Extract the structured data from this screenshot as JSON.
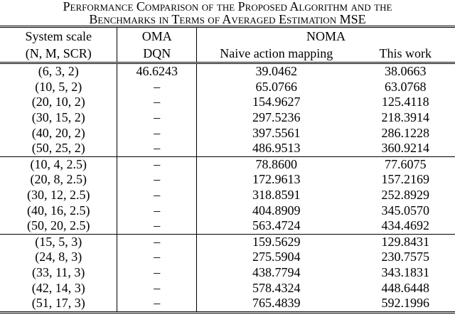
{
  "caption": {
    "lines": [
      "Performance Comparison of the Proposed Algorithm and the",
      "Benchmarks in Terms of Averaged Estimation MSE"
    ]
  },
  "table": {
    "header": [
      [
        "System scale",
        "OMA",
        "NOMA"
      ],
      [
        "(N, M, SCR)",
        "DQN",
        "Naive action mapping",
        "This work"
      ]
    ],
    "groups": [
      [
        [
          "(6, 3, 2)",
          "46.6243",
          "39.0462",
          "38.0663"
        ],
        [
          "(10, 5, 2)",
          "–",
          "65.0766",
          "63.0768"
        ],
        [
          "(20, 10, 2)",
          "–",
          "154.9627",
          "125.4118"
        ],
        [
          "(30, 15, 2)",
          "–",
          "297.5236",
          "218.3914"
        ],
        [
          "(40, 20, 2)",
          "–",
          "397.5561",
          "286.1228"
        ],
        [
          "(50, 25, 2)",
          "–",
          "486.9513",
          "360.9214"
        ]
      ],
      [
        [
          "(10, 4, 2.5)",
          "–",
          "78.8600",
          "77.6075"
        ],
        [
          "(20, 8, 2.5)",
          "–",
          "172.9613",
          "157.2169"
        ],
        [
          "(30, 12, 2.5)",
          "–",
          "318.8591",
          "252.8929"
        ],
        [
          "(40, 16, 2.5)",
          "–",
          "404.8909",
          "345.0570"
        ],
        [
          "(50, 20, 2.5)",
          "–",
          "563.4724",
          "434.4692"
        ]
      ],
      [
        [
          "(15, 5, 3)",
          "–",
          "159.5629",
          "129.8431"
        ],
        [
          "(24, 8, 3)",
          "–",
          "275.5904",
          "230.7575"
        ],
        [
          "(33, 11, 3)",
          "–",
          "438.7794",
          "343.1831"
        ],
        [
          "(42, 14, 3)",
          "–",
          "578.4324",
          "448.6448"
        ],
        [
          "(51, 17, 3)",
          "–",
          "765.4839",
          "592.1996"
        ]
      ]
    ]
  }
}
